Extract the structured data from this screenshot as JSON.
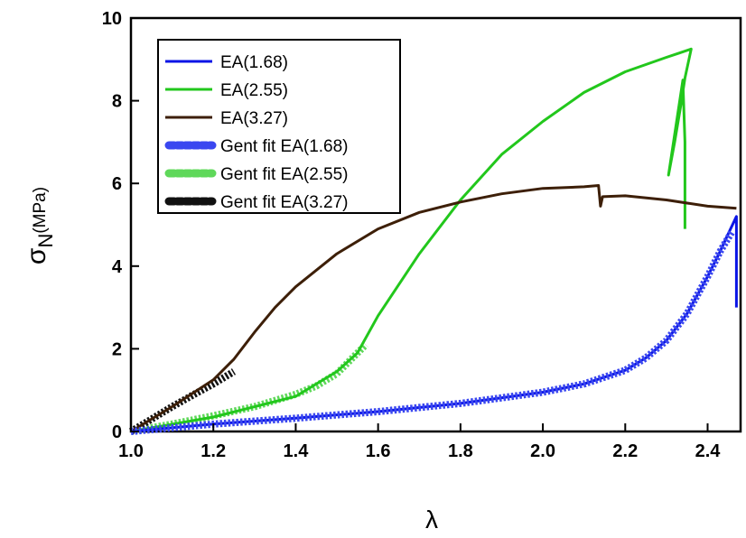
{
  "chart_data": {
    "type": "line",
    "xlabel": "λ",
    "ylabel_main": "σ",
    "ylabel_sub": "N",
    "ylabel_unit": "(MPa)",
    "xlim": [
      1.0,
      2.48
    ],
    "ylim": [
      0,
      10
    ],
    "xticks": [
      "1.0",
      "1.2",
      "1.4",
      "1.6",
      "1.8",
      "2.0",
      "2.2",
      "2.4"
    ],
    "yticks": [
      "0",
      "2",
      "4",
      "6",
      "8",
      "10"
    ],
    "grid": false,
    "legend_position": "top-left",
    "series": [
      {
        "name": "EA(1.68)",
        "style": "solid",
        "color": "#0a14e6",
        "x": [
          1.0,
          1.2,
          1.4,
          1.6,
          1.8,
          2.0,
          2.1,
          2.2,
          2.25,
          2.3,
          2.35,
          2.4,
          2.43,
          2.45,
          2.47,
          2.47,
          2.47
        ],
        "y": [
          0,
          0.18,
          0.32,
          0.48,
          0.68,
          0.95,
          1.15,
          1.48,
          1.78,
          2.2,
          2.85,
          3.75,
          4.35,
          4.78,
          5.2,
          4.0,
          3.0
        ]
      },
      {
        "name": "EA(2.55)",
        "style": "solid",
        "color": "#22c71c",
        "x": [
          1.0,
          1.2,
          1.4,
          1.5,
          1.55,
          1.6,
          1.7,
          1.8,
          1.9,
          2.0,
          2.1,
          2.2,
          2.3,
          2.33,
          2.36,
          2.345,
          2.335,
          2.32,
          2.305,
          2.34,
          2.345,
          2.345
        ],
        "y": [
          0,
          0.35,
          0.85,
          1.45,
          1.9,
          2.8,
          4.3,
          5.6,
          6.7,
          7.5,
          8.2,
          8.7,
          9.05,
          9.15,
          9.25,
          8.55,
          7.9,
          7.0,
          6.2,
          8.5,
          7.0,
          4.9
        ]
      },
      {
        "name": "EA(3.27)",
        "style": "solid",
        "color": "#3d1f08",
        "x": [
          1.0,
          1.1,
          1.2,
          1.25,
          1.3,
          1.35,
          1.4,
          1.5,
          1.6,
          1.7,
          1.8,
          1.9,
          2.0,
          2.1,
          2.135,
          2.14,
          2.145,
          2.2,
          2.3,
          2.4,
          2.47
        ],
        "y": [
          0,
          0.6,
          1.25,
          1.75,
          2.4,
          3.0,
          3.5,
          4.3,
          4.9,
          5.3,
          5.55,
          5.75,
          5.88,
          5.92,
          5.95,
          5.45,
          5.68,
          5.7,
          5.6,
          5.45,
          5.4
        ]
      },
      {
        "name": "Gent fit EA(1.68)",
        "style": "dotted",
        "color": "#3a47f0",
        "x": [
          1.0,
          1.2,
          1.4,
          1.6,
          1.8,
          2.0,
          2.1,
          2.2,
          2.25,
          2.3,
          2.35,
          2.4,
          2.43,
          2.46
        ],
        "y": [
          0,
          0.18,
          0.32,
          0.48,
          0.68,
          0.95,
          1.15,
          1.48,
          1.78,
          2.2,
          2.85,
          3.75,
          4.35,
          4.85
        ]
      },
      {
        "name": "Gent fit EA(2.55)",
        "style": "dotted",
        "color": "#5fd85a",
        "x": [
          1.0,
          1.1,
          1.2,
          1.3,
          1.4,
          1.45,
          1.5,
          1.53,
          1.57
        ],
        "y": [
          0,
          0.18,
          0.38,
          0.6,
          0.9,
          1.1,
          1.4,
          1.7,
          2.1
        ]
      },
      {
        "name": "Gent fit EA(3.27)",
        "style": "dotted",
        "color": "#111111",
        "x": [
          1.0,
          1.05,
          1.1,
          1.15,
          1.2,
          1.25
        ],
        "y": [
          0,
          0.3,
          0.6,
          0.88,
          1.15,
          1.45
        ]
      }
    ]
  }
}
